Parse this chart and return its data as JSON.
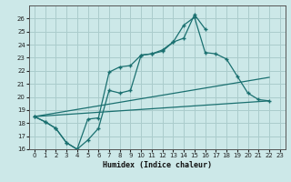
{
  "xlabel": "Humidex (Indice chaleur)",
  "background_color": "#cce8e8",
  "grid_color": "#aacccc",
  "line_color": "#1a7070",
  "ylim": [
    16,
    27
  ],
  "xlim": [
    -0.5,
    23.5
  ],
  "yticks": [
    16,
    17,
    18,
    19,
    20,
    21,
    22,
    23,
    24,
    25,
    26
  ],
  "xticks": [
    0,
    1,
    2,
    3,
    4,
    5,
    6,
    7,
    8,
    9,
    10,
    11,
    12,
    13,
    14,
    15,
    16,
    17,
    18,
    19,
    20,
    21,
    22,
    23
  ],
  "line1_x": [
    0,
    1,
    2,
    3,
    4,
    5,
    6,
    7,
    8,
    9,
    10,
    11,
    12,
    13,
    14,
    15,
    16
  ],
  "line1_y": [
    18.5,
    18.1,
    17.6,
    16.5,
    16.0,
    16.7,
    17.6,
    20.5,
    20.3,
    20.5,
    23.2,
    23.3,
    23.5,
    24.2,
    24.5,
    26.3,
    25.2
  ],
  "line2_x": [
    0,
    1,
    2,
    3,
    4,
    5,
    6,
    7,
    8,
    9,
    10,
    11,
    12,
    13,
    14,
    15,
    16,
    17,
    18,
    19,
    20,
    21,
    22
  ],
  "line2_y": [
    18.5,
    18.1,
    17.6,
    16.5,
    16.0,
    18.3,
    18.4,
    21.9,
    22.3,
    22.4,
    23.2,
    23.3,
    23.6,
    24.2,
    25.5,
    26.1,
    23.4,
    23.3,
    22.9,
    21.6,
    20.3,
    19.8,
    19.7
  ],
  "line3_x": [
    0,
    22
  ],
  "line3_y": [
    18.5,
    21.5
  ],
  "line4_x": [
    0,
    22
  ],
  "line4_y": [
    18.5,
    19.7
  ]
}
